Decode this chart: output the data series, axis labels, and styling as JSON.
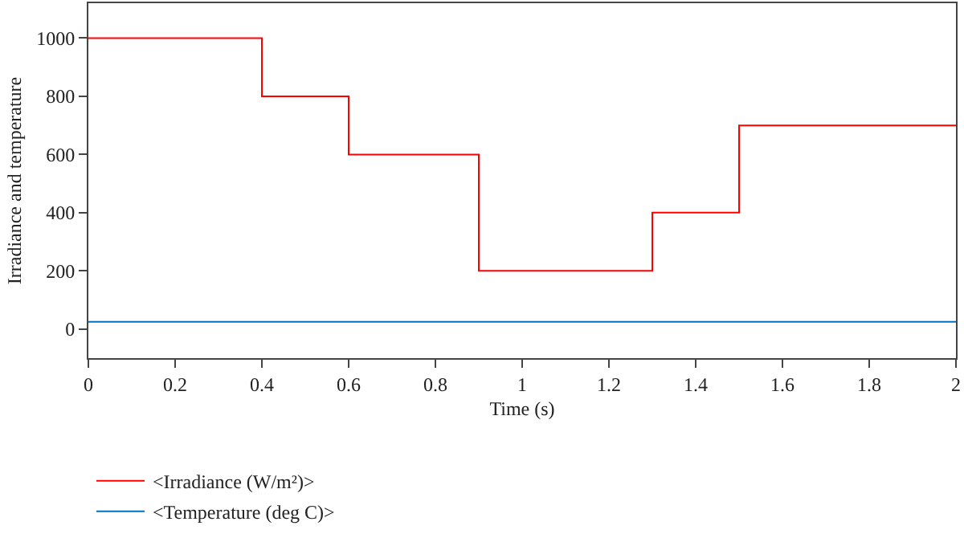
{
  "chart_data": {
    "type": "step",
    "xlabel": "Time (s)",
    "ylabel": "Irradiance and temperature",
    "xlim": [
      0,
      2
    ],
    "xticks": [
      0,
      0.2,
      0.4,
      0.6,
      0.8,
      1,
      1.2,
      1.4,
      1.6,
      1.8,
      2
    ],
    "ylim": [
      -100,
      1120
    ],
    "yticks": [
      0,
      200,
      400,
      600,
      800,
      1000
    ],
    "legend": "bottom left",
    "series": [
      {
        "name": "<Irradiance (W/m²)>",
        "color": "#ff0000",
        "x": [
          0,
          0.4,
          0.6,
          0.9,
          1.3,
          1.5,
          2
        ],
        "values": [
          1000,
          800,
          600,
          200,
          400,
          700,
          700
        ]
      },
      {
        "name": "<Temperature (deg C)>",
        "color": "#0072bd",
        "x": [
          0,
          2
        ],
        "values": [
          25,
          25
        ]
      }
    ]
  }
}
